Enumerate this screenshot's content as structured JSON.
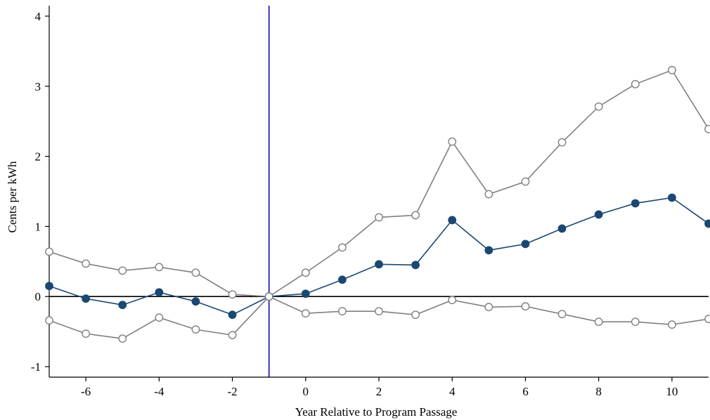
{
  "chart_data": {
    "type": "line",
    "title": "",
    "xlabel": "Year Relative to Program Passage",
    "ylabel": "Cents per kWh",
    "xlim": [
      -7,
      11
    ],
    "ylim": [
      -1.15,
      4.15
    ],
    "xticks": [
      -6,
      -4,
      -2,
      0,
      2,
      4,
      6,
      8,
      10
    ],
    "yticks": [
      -1,
      0,
      1,
      2,
      3,
      4
    ],
    "reference_lines": {
      "vertical_x": -1,
      "vertical_color": "#1f1fbf",
      "horizontal_y": 0,
      "horizontal_color": "#000000"
    },
    "grid": false,
    "legend": "none",
    "x": [
      -7,
      -6,
      -5,
      -4,
      -3,
      -2,
      -1,
      0,
      1,
      2,
      3,
      4,
      5,
      6,
      7,
      8,
      9,
      10,
      11
    ],
    "series": [
      {
        "role": "upper_ci",
        "color": "#808080",
        "marker": "hollow-circle",
        "values": [
          0.64,
          0.47,
          0.37,
          0.42,
          0.34,
          0.03,
          0.0,
          0.34,
          0.7,
          1.13,
          1.16,
          2.21,
          1.46,
          1.64,
          2.2,
          2.71,
          3.03,
          3.23,
          2.39
        ]
      },
      {
        "role": "estimate",
        "color": "#1a4872",
        "marker": "filled-circle",
        "values": [
          0.15,
          -0.03,
          -0.12,
          0.06,
          -0.07,
          -0.26,
          0.0,
          0.04,
          0.24,
          0.46,
          0.45,
          1.09,
          0.66,
          0.75,
          0.97,
          1.17,
          1.33,
          1.41,
          1.04
        ]
      },
      {
        "role": "lower_ci",
        "color": "#808080",
        "marker": "hollow-circle",
        "values": [
          -0.34,
          -0.53,
          -0.6,
          -0.3,
          -0.47,
          -0.55,
          0.0,
          -0.24,
          -0.21,
          -0.21,
          -0.26,
          -0.05,
          -0.15,
          -0.14,
          -0.25,
          -0.36,
          -0.36,
          -0.4,
          -0.32
        ]
      }
    ]
  }
}
